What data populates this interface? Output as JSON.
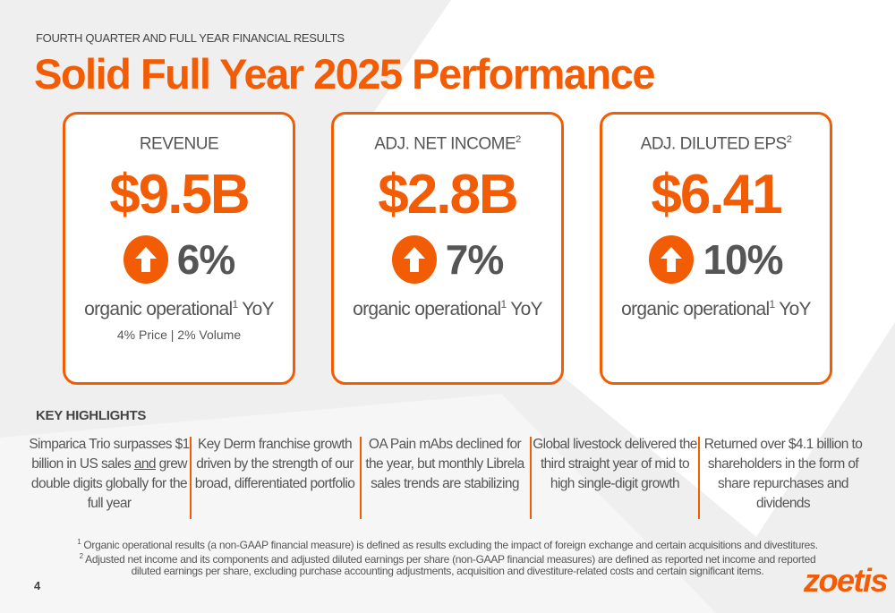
{
  "kicker": "FOURTH QUARTER AND FULL YEAR FINANCIAL RESULTS",
  "title": "Solid Full Year 2025 Performance",
  "accent_color": "#f25c05",
  "cards": [
    {
      "label": "REVENUE",
      "label_sup": "",
      "value": "$9.5B",
      "change": "6%",
      "change_icon": "arrow-up-circle-icon",
      "desc": "organic operational",
      "desc_sup": "1",
      "desc_tail": " YoY",
      "sub": "4% Price | 2% Volume"
    },
    {
      "label": "ADJ. NET INCOME",
      "label_sup": "2",
      "value": "$2.8B",
      "change": "7%",
      "change_icon": "arrow-up-circle-icon",
      "desc": "organic operational",
      "desc_sup": "1",
      "desc_tail": " YoY"
    },
    {
      "label": "ADJ. DILUTED EPS",
      "label_sup": "2",
      "value": "$6.41",
      "change": "10%",
      "change_icon": "arrow-up-circle-icon",
      "desc": "organic operational",
      "desc_sup": "1",
      "desc_tail": " YoY"
    }
  ],
  "highlights_title": "KEY HIGHLIGHTS",
  "highlights": [
    {
      "pre": "Simparica Trio surpasses $1 billion in US sales ",
      "u": "and",
      "post": " grew double digits globally for the full year"
    },
    {
      "text": "Key Derm franchise growth driven by the strength of our broad, differentiated portfolio"
    },
    {
      "text": "OA Pain mAbs declined for the year, but monthly Librela sales trends are stabilizing"
    },
    {
      "text": "Global livestock delivered the third straight year of mid to high single-digit growth"
    },
    {
      "text": "Returned over $4.1 billion to shareholders in the form of share repurchases and dividends"
    }
  ],
  "footnotes": [
    {
      "sup": "1",
      "text": "Organic operational results (a non-GAAP financial measure) is defined as results excluding the impact of foreign exchange and certain acquisitions and divestitures."
    },
    {
      "sup": "2",
      "text": "Adjusted net income and its components and adjusted diluted earnings per share (non-GAAP financial measures) are defined as reported net income and reported"
    },
    {
      "sup": "",
      "text": "diluted earnings per share, excluding purchase accounting adjustments, acquisition and divestiture-related costs and certain significant items."
    }
  ],
  "page_number": "4",
  "logo": "zoetis"
}
